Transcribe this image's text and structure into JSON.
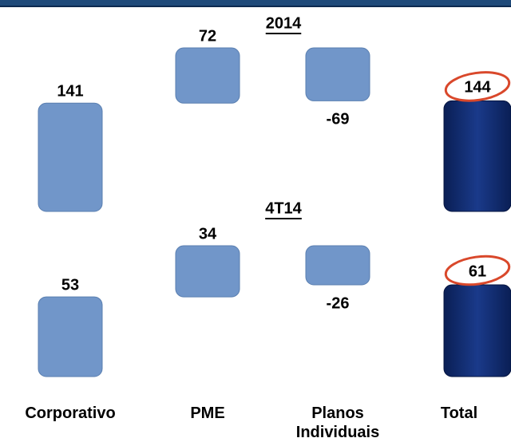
{
  "chart_data": {
    "type": "waterfall",
    "categories": [
      "Corporativo",
      "PME",
      "Planos Individuais",
      "Total"
    ],
    "series": [
      {
        "name": "2014",
        "values": [
          141,
          72,
          -69,
          144
        ]
      },
      {
        "name": "4T14",
        "values": [
          53,
          34,
          -26,
          61
        ]
      }
    ],
    "color": "#7196c9",
    "total_color": "#0f2a6e",
    "highlight_color": "#d9482b"
  }
}
